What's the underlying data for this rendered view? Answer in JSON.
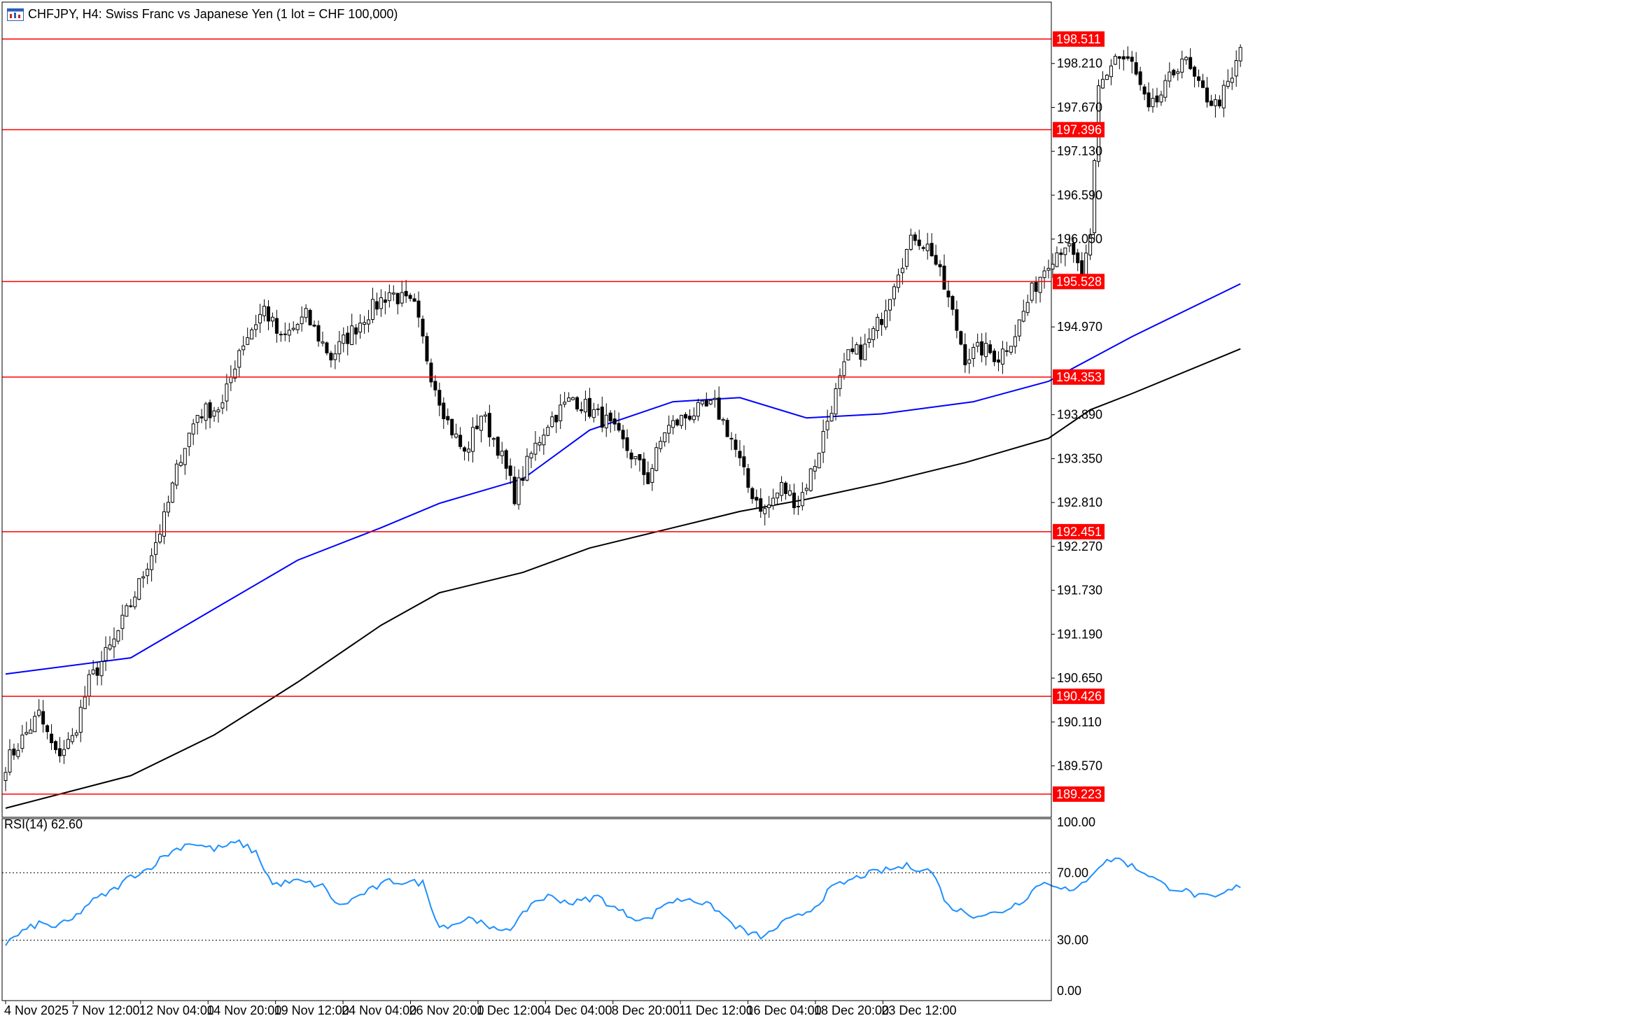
{
  "header": {
    "title": "CHFJPY, H4:  Swiss Franc vs Japanese Yen (1 lot = CHF 100,000)"
  },
  "colors": {
    "level_line": "#ff0000",
    "ma_fast": "#0000ff",
    "ma_slow": "#000000",
    "rsi_line": "#1e90ff",
    "candle_bull": "#ffffff",
    "candle_bear": "#000000"
  },
  "rsi_panel": {
    "title": "RSI(14) 62.60",
    "ticks": [
      "100.00",
      "70.00",
      "30.00",
      "0.00"
    ],
    "levels": [
      70,
      30
    ]
  },
  "chart_data": {
    "type": "candlestick",
    "title": "CHFJPY, H4:  Swiss Franc vs Japanese Yen (1 lot = CHF 100,000)",
    "ylim": [
      189.05,
      198.75
    ],
    "y_ticks": [
      "198.210",
      "197.670",
      "197.130",
      "196.590",
      "196.050",
      "194.970",
      "193.890",
      "193.350",
      "192.810",
      "192.270",
      "191.730",
      "191.190",
      "190.650",
      "190.110",
      "189.570"
    ],
    "x_ticks": [
      "4 Nov 2025",
      "7 Nov 12:00",
      "12 Nov 04:00",
      "14 Nov 20:00",
      "19 Nov 12:00",
      "24 Nov 04:00",
      "26 Nov 20:00",
      "1 Dec 12:00",
      "4 Dec 04:00",
      "8 Dec 20:00",
      "11 Dec 12:00",
      "16 Dec 04:00",
      "18 Dec 20:00",
      "23 Dec 12:00"
    ],
    "levels": [
      "198.511",
      "197.396",
      "195.528",
      "194.353",
      "192.451",
      "190.426",
      "189.223"
    ],
    "close_anchors": [
      [
        0,
        189.6
      ],
      [
        4,
        189.9
      ],
      [
        8,
        190.2
      ],
      [
        12,
        189.7
      ],
      [
        16,
        189.9
      ],
      [
        20,
        190.6
      ],
      [
        26,
        191.1
      ],
      [
        32,
        191.8
      ],
      [
        38,
        192.6
      ],
      [
        42,
        193.4
      ],
      [
        46,
        193.9
      ],
      [
        52,
        194.0
      ],
      [
        56,
        194.7
      ],
      [
        62,
        195.2
      ],
      [
        66,
        194.8
      ],
      [
        72,
        195.1
      ],
      [
        78,
        194.6
      ],
      [
        86,
        195.1
      ],
      [
        92,
        195.4
      ],
      [
        98,
        195.2
      ],
      [
        102,
        194.4
      ],
      [
        106,
        193.8
      ],
      [
        110,
        193.4
      ],
      [
        114,
        193.9
      ],
      [
        118,
        193.5
      ],
      [
        122,
        192.9
      ],
      [
        126,
        193.4
      ],
      [
        130,
        193.8
      ],
      [
        136,
        194.1
      ],
      [
        144,
        193.8
      ],
      [
        150,
        193.4
      ],
      [
        154,
        193.1
      ],
      [
        158,
        193.7
      ],
      [
        164,
        193.9
      ],
      [
        170,
        194.0
      ],
      [
        174,
        193.6
      ],
      [
        178,
        193.0
      ],
      [
        182,
        192.7
      ],
      [
        186,
        193.0
      ],
      [
        190,
        192.8
      ],
      [
        194,
        193.3
      ],
      [
        198,
        194.0
      ],
      [
        202,
        194.6
      ],
      [
        206,
        194.7
      ],
      [
        210,
        195.1
      ],
      [
        214,
        195.7
      ],
      [
        218,
        196.1
      ],
      [
        222,
        195.9
      ],
      [
        226,
        195.3
      ],
      [
        230,
        194.6
      ],
      [
        234,
        194.7
      ],
      [
        238,
        194.6
      ],
      [
        242,
        194.9
      ],
      [
        246,
        195.4
      ],
      [
        250,
        195.8
      ],
      [
        254,
        196.0
      ],
      [
        258,
        195.6
      ],
      [
        260,
        196.0
      ],
      [
        262,
        197.9
      ],
      [
        266,
        198.3
      ],
      [
        270,
        198.2
      ],
      [
        274,
        197.6
      ],
      [
        278,
        197.9
      ],
      [
        282,
        198.3
      ],
      [
        286,
        197.9
      ],
      [
        290,
        197.7
      ],
      [
        294,
        198.0
      ],
      [
        296,
        198.4
      ]
    ],
    "ma_fast": [
      [
        0,
        190.7
      ],
      [
        30,
        190.9
      ],
      [
        50,
        191.5
      ],
      [
        70,
        192.1
      ],
      [
        90,
        192.5
      ],
      [
        104,
        192.8
      ],
      [
        124,
        193.1
      ],
      [
        140,
        193.7
      ],
      [
        160,
        194.05
      ],
      [
        176,
        194.1
      ],
      [
        192,
        193.85
      ],
      [
        210,
        193.9
      ],
      [
        232,
        194.05
      ],
      [
        250,
        194.3
      ],
      [
        270,
        194.85
      ],
      [
        296,
        195.5
      ]
    ],
    "ma_slow": [
      [
        0,
        189.05
      ],
      [
        30,
        189.45
      ],
      [
        50,
        189.95
      ],
      [
        70,
        190.6
      ],
      [
        90,
        191.3
      ],
      [
        104,
        191.7
      ],
      [
        124,
        191.95
      ],
      [
        140,
        192.25
      ],
      [
        160,
        192.5
      ],
      [
        176,
        192.7
      ],
      [
        192,
        192.85
      ],
      [
        210,
        193.05
      ],
      [
        230,
        193.3
      ],
      [
        250,
        193.6
      ],
      [
        260,
        193.95
      ],
      [
        270,
        194.15
      ],
      [
        296,
        194.7
      ]
    ],
    "rsi": [
      [
        0,
        28
      ],
      [
        4,
        35
      ],
      [
        8,
        40
      ],
      [
        12,
        38
      ],
      [
        16,
        42
      ],
      [
        20,
        52
      ],
      [
        26,
        60
      ],
      [
        30,
        68
      ],
      [
        34,
        72
      ],
      [
        38,
        80
      ],
      [
        44,
        88
      ],
      [
        50,
        84
      ],
      [
        56,
        88
      ],
      [
        60,
        82
      ],
      [
        64,
        63
      ],
      [
        70,
        65
      ],
      [
        76,
        62
      ],
      [
        80,
        50
      ],
      [
        86,
        58
      ],
      [
        92,
        65
      ],
      [
        100,
        64
      ],
      [
        104,
        38
      ],
      [
        108,
        40
      ],
      [
        112,
        44
      ],
      [
        116,
        36
      ],
      [
        122,
        38
      ],
      [
        126,
        52
      ],
      [
        130,
        56
      ],
      [
        136,
        52
      ],
      [
        142,
        56
      ],
      [
        146,
        49
      ],
      [
        150,
        44
      ],
      [
        154,
        42
      ],
      [
        158,
        52
      ],
      [
        164,
        55
      ],
      [
        170,
        49
      ],
      [
        174,
        40
      ],
      [
        178,
        34
      ],
      [
        182,
        32
      ],
      [
        186,
        40
      ],
      [
        190,
        44
      ],
      [
        194,
        50
      ],
      [
        198,
        61
      ],
      [
        202,
        65
      ],
      [
        206,
        69
      ],
      [
        210,
        71
      ],
      [
        216,
        74
      ],
      [
        222,
        71
      ],
      [
        226,
        50
      ],
      [
        232,
        45
      ],
      [
        238,
        46
      ],
      [
        244,
        54
      ],
      [
        248,
        64
      ],
      [
        252,
        63
      ],
      [
        256,
        58
      ],
      [
        262,
        74
      ],
      [
        266,
        79
      ],
      [
        270,
        74
      ],
      [
        274,
        69
      ],
      [
        278,
        62
      ],
      [
        282,
        60
      ],
      [
        286,
        56
      ],
      [
        290,
        55
      ],
      [
        294,
        60
      ],
      [
        296,
        62.6
      ]
    ]
  }
}
